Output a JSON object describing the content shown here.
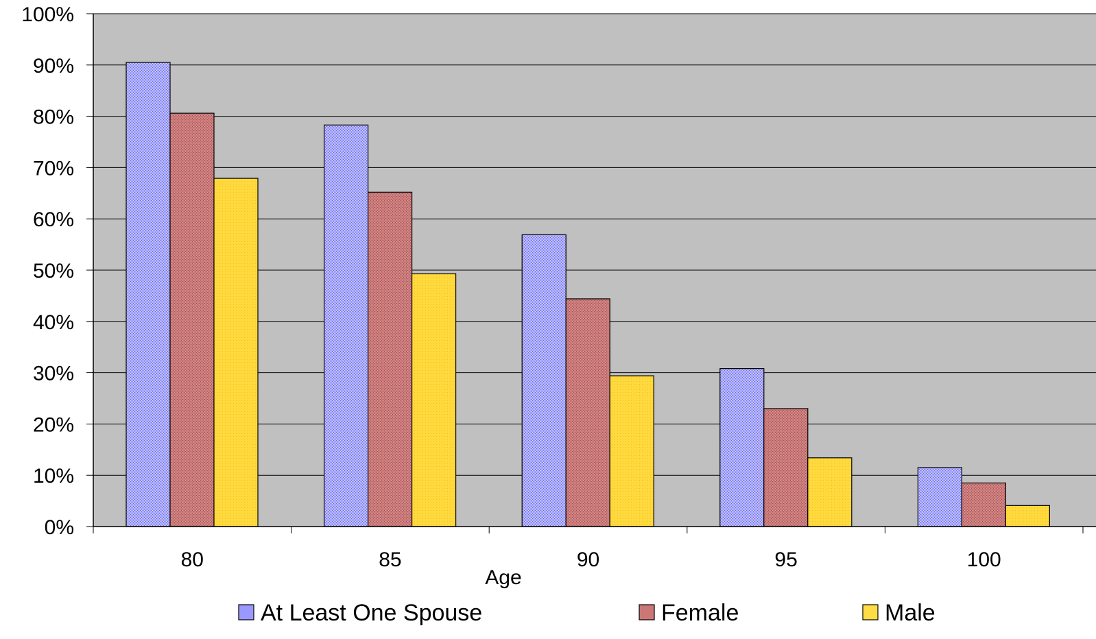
{
  "chart_data": {
    "type": "bar",
    "categories": [
      "80",
      "85",
      "90",
      "95",
      "100"
    ],
    "series": [
      {
        "name": "At Least One Spouse",
        "values": [
          90.5,
          78.3,
          56.9,
          30.8,
          11.5
        ],
        "color": "#9999ff",
        "pattern": "dots"
      },
      {
        "name": "Female",
        "values": [
          80.6,
          65.2,
          44.4,
          23.0,
          8.5
        ],
        "color": "#cc7777",
        "pattern": "dots"
      },
      {
        "name": "Male",
        "values": [
          67.9,
          49.3,
          29.4,
          13.4,
          4.1
        ],
        "color": "#ffdd44",
        "pattern": "solid"
      }
    ],
    "y_ticks": [
      "0%",
      "10%",
      "20%",
      "30%",
      "40%",
      "50%",
      "60%",
      "70%",
      "80%",
      "90%",
      "100%"
    ],
    "ylim": [
      0,
      100
    ],
    "xlabel": "Age",
    "ylabel": "",
    "title": "",
    "grid": true,
    "plot_background": "#c0c0c0",
    "legend_position": "bottom"
  }
}
